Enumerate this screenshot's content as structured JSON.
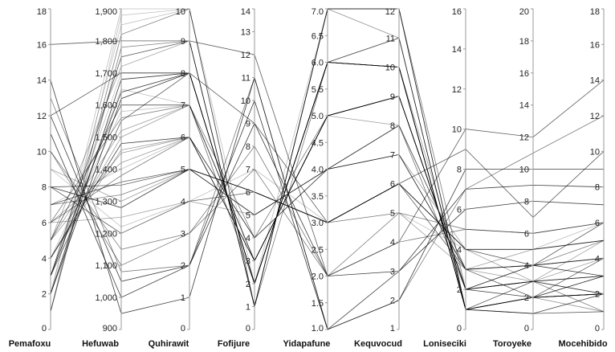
{
  "chart_data": {
    "type": "parallel-coordinates",
    "title": "",
    "axes": [
      {
        "name": "Pemafoxu",
        "range": [
          0,
          18
        ],
        "ticks": [
          0,
          2,
          4,
          6,
          8,
          10,
          12,
          14,
          16,
          18
        ],
        "tick_labels": [
          "0",
          "2",
          "4",
          "6",
          "8",
          "10",
          "12",
          "14",
          "16",
          "18"
        ]
      },
      {
        "name": "Hefuwab",
        "range": [
          900,
          1900
        ],
        "ticks": [
          900,
          1000,
          1100,
          1200,
          1300,
          1400,
          1500,
          1600,
          1700,
          1800,
          1900
        ],
        "tick_labels": [
          "900",
          "1,000",
          "1,100",
          "1,200",
          "1,300",
          "1,400",
          "1,500",
          "1,600",
          "1,700",
          "1,800",
          "1,900"
        ]
      },
      {
        "name": "Quhirawit",
        "range": [
          0,
          10
        ],
        "ticks": [
          0,
          1,
          2,
          3,
          4,
          5,
          6,
          7,
          8,
          9,
          10
        ],
        "tick_labels": [
          "0",
          "1",
          "2",
          "3",
          "4",
          "5",
          "6",
          "7",
          "8",
          "9",
          "10"
        ]
      },
      {
        "name": "Fofijure",
        "range": [
          0,
          14
        ],
        "ticks": [
          0,
          1,
          2,
          3,
          4,
          5,
          6,
          7,
          8,
          9,
          10,
          11,
          12,
          13,
          14
        ],
        "tick_labels": [
          "0",
          "1",
          "2",
          "3",
          "4",
          "5",
          "6",
          "7",
          "8",
          "9",
          "10",
          "11",
          "12",
          "13",
          "14"
        ]
      },
      {
        "name": "Yidapafune",
        "range": [
          1,
          7
        ],
        "ticks": [
          1,
          1.5,
          2,
          2.5,
          3,
          3.5,
          4,
          4.5,
          5,
          5.5,
          6,
          6.5,
          7
        ],
        "tick_labels": [
          "1.0",
          "1.5",
          "2.0",
          "2.5",
          "3.0",
          "3.5",
          "4.0",
          "4.5",
          "5.0",
          "5.5",
          "6.0",
          "6.5",
          "7.0"
        ]
      },
      {
        "name": "Kequvocud",
        "range": [
          1,
          12
        ],
        "ticks": [
          1,
          2,
          3,
          4,
          5,
          6,
          7,
          8,
          9,
          10,
          11,
          12
        ],
        "tick_labels": [
          "1",
          "2",
          "3",
          "4",
          "5",
          "6",
          "7",
          "8",
          "9",
          "10",
          "11",
          "12"
        ]
      },
      {
        "name": "Loniseciki",
        "range": [
          0,
          16
        ],
        "ticks": [
          0,
          2,
          4,
          6,
          8,
          10,
          12,
          14,
          16
        ],
        "tick_labels": [
          "0",
          "2",
          "4",
          "6",
          "8",
          "10",
          "12",
          "14",
          "16"
        ]
      },
      {
        "name": "Toroyeke",
        "range": [
          0,
          20
        ],
        "ticks": [
          0,
          2,
          4,
          6,
          8,
          10,
          12,
          14,
          16,
          18,
          20
        ],
        "tick_labels": [
          "0",
          "2",
          "4",
          "6",
          "8",
          "10",
          "12",
          "14",
          "16",
          "18",
          "20"
        ]
      },
      {
        "name": "Mocehibido",
        "range": [
          0,
          18
        ],
        "ticks": [
          0,
          2,
          4,
          6,
          8,
          10,
          12,
          14,
          16,
          18
        ],
        "tick_labels": [
          "0",
          "2",
          "4",
          "6",
          "8",
          "10",
          "12",
          "14",
          "16",
          "18"
        ]
      }
    ],
    "records": [
      [
        3,
        1650,
        7,
        2,
        6,
        11,
        1,
        2,
        3
      ],
      [
        5,
        1720,
        9,
        1,
        7,
        12,
        1,
        1,
        2
      ],
      [
        1,
        1820,
        10,
        1,
        7,
        12,
        2,
        3,
        1
      ],
      [
        8,
        1350,
        5,
        6,
        3,
        6,
        3,
        2,
        4
      ],
      [
        4,
        1480,
        6,
        3,
        5,
        9,
        2,
        4,
        3
      ],
      [
        2,
        1900,
        10,
        2,
        7,
        11,
        1,
        2,
        1
      ],
      [
        6,
        1250,
        4,
        5,
        4,
        7,
        4,
        3,
        5
      ],
      [
        10,
        1100,
        3,
        7,
        2,
        4,
        5,
        6,
        6
      ],
      [
        3,
        1550,
        8,
        2,
        6,
        10,
        1,
        3,
        2
      ],
      [
        12,
        1050,
        2,
        9,
        2,
        3,
        6,
        8,
        7
      ],
      [
        7,
        1400,
        6,
        4,
        4,
        8,
        2,
        4,
        4
      ],
      [
        9,
        1300,
        5,
        6,
        3,
        5,
        3,
        5,
        5
      ],
      [
        1,
        1780,
        9,
        1,
        6,
        11,
        1,
        1,
        2
      ],
      [
        5,
        1600,
        7,
        3,
        5,
        9,
        2,
        2,
        3
      ],
      [
        14,
        950,
        1,
        11,
        1,
        2,
        8,
        10,
        9
      ],
      [
        2,
        1850,
        10,
        1,
        7,
        12,
        1,
        2,
        1
      ],
      [
        4,
        1500,
        7,
        2,
        6,
        10,
        2,
        3,
        2
      ],
      [
        6,
        1380,
        6,
        4,
        4,
        8,
        3,
        4,
        4
      ],
      [
        8,
        1200,
        4,
        6,
        3,
        6,
        4,
        4,
        6
      ],
      [
        11,
        1000,
        2,
        10,
        1,
        3,
        7,
        9,
        8
      ],
      [
        3,
        1700,
        8,
        2,
        6,
        11,
        1,
        2,
        2
      ],
      [
        5,
        1450,
        6,
        3,
        5,
        9,
        2,
        3,
        3
      ],
      [
        7,
        1320,
        5,
        5,
        4,
        7,
        3,
        4,
        5
      ],
      [
        16,
        1800,
        9,
        12,
        2,
        4,
        10,
        12,
        14
      ],
      [
        2,
        1620,
        8,
        2,
        6,
        10,
        1,
        2,
        2
      ],
      [
        4,
        1580,
        7,
        3,
        5,
        9,
        2,
        2,
        3
      ],
      [
        6,
        1420,
        6,
        4,
        4,
        8,
        3,
        3,
        4
      ],
      [
        10,
        1150,
        3,
        8,
        2,
        5,
        5,
        6,
        6
      ],
      [
        3,
        1750,
        9,
        1,
        7,
        12,
        1,
        1,
        1
      ],
      [
        8,
        1280,
        5,
        6,
        3,
        6,
        4,
        5,
        5
      ],
      [
        1,
        1880,
        10,
        1,
        7,
        11,
        1,
        2,
        2
      ],
      [
        5,
        1520,
        7,
        3,
        5,
        9,
        2,
        3,
        3
      ],
      [
        13,
        1080,
        2,
        11,
        1,
        2,
        7,
        11,
        12
      ],
      [
        7,
        1360,
        5,
        5,
        4,
        7,
        3,
        4,
        4
      ],
      [
        2,
        1680,
        8,
        2,
        6,
        10,
        1,
        2,
        2
      ],
      [
        9,
        1220,
        4,
        7,
        3,
        5,
        4,
        5,
        6
      ],
      [
        4,
        1460,
        6,
        3,
        5,
        8,
        2,
        3,
        3
      ],
      [
        6,
        1560,
        7,
        4,
        5,
        9,
        2,
        3,
        3
      ],
      [
        12,
        1700,
        8,
        9,
        3,
        6,
        9,
        7,
        10
      ],
      [
        3,
        1640,
        8,
        2,
        6,
        10,
        1,
        2,
        2
      ]
    ]
  }
}
